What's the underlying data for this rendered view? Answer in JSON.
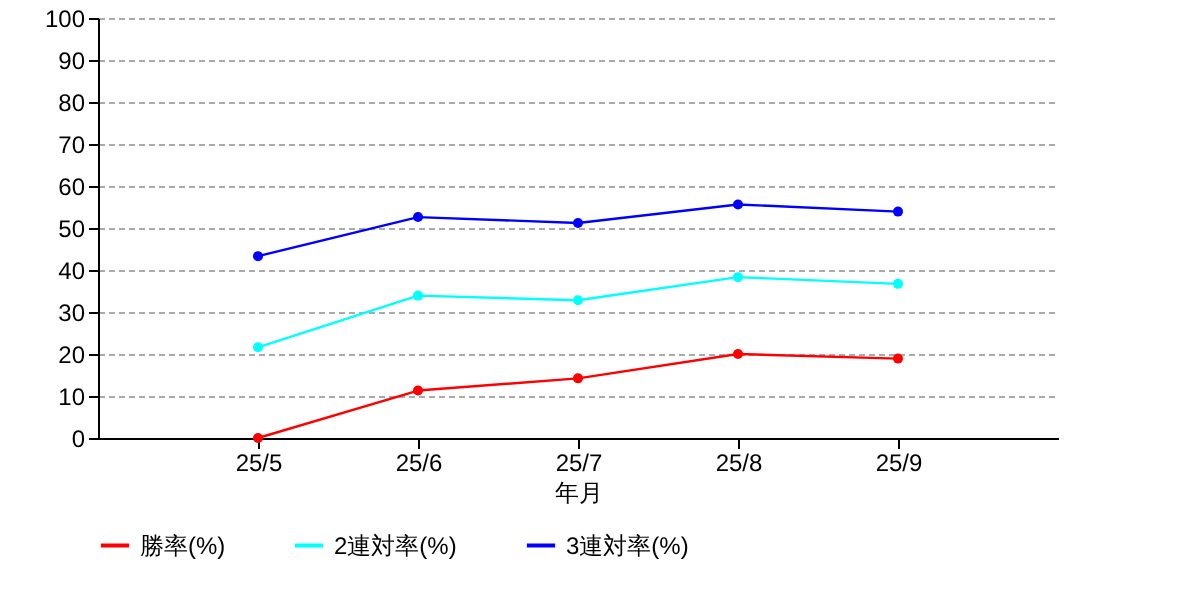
{
  "chart_data": {
    "type": "line",
    "xlabel": "年月",
    "categories": [
      "25/5",
      "25/6",
      "25/7",
      "25/8",
      "25/9"
    ],
    "series": [
      {
        "name": "勝率(%)",
        "color": "#ff0000",
        "values": [
          0,
          11.3,
          14.2,
          20.0,
          18.9
        ]
      },
      {
        "name": "2連対率(%)",
        "color": "#00ffff",
        "values": [
          21.6,
          33.9,
          32.8,
          38.3,
          36.7
        ]
      },
      {
        "name": "3連対率(%)",
        "color": "#0000ff",
        "values": [
          43.3,
          52.6,
          51.2,
          55.6,
          53.9
        ]
      }
    ],
    "ylim": [
      0,
      100
    ],
    "yticks": [
      0,
      10,
      20,
      30,
      40,
      50,
      60,
      70,
      80,
      90,
      100
    ],
    "grid": "y",
    "legend": "bottom",
    "marker": "circle",
    "line_style": "solid"
  }
}
